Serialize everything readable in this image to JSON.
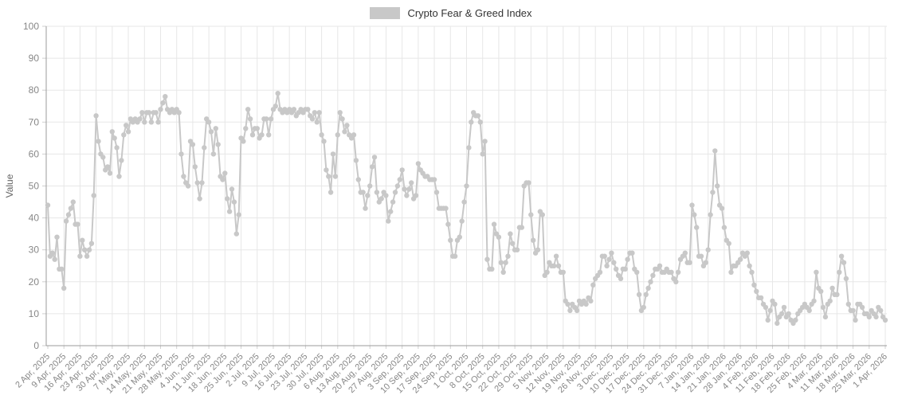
{
  "legend": {
    "label": "Crypto Fear & Greed Index",
    "swatch_color": "#c8c8c8"
  },
  "chart_data": {
    "type": "line",
    "title": "Crypto Fear & Greed Index",
    "xlabel": "",
    "ylabel": "Value",
    "ylim": [
      0,
      100
    ],
    "grid": true,
    "legend_position": "top-center",
    "series_color": "#c8c8c8",
    "grid_color": "#e7e7e7",
    "axis_color": "#9b9b9b",
    "tick_label_color": "#878787",
    "y_ticks": [
      0,
      10,
      20,
      30,
      40,
      50,
      60,
      70,
      80,
      90,
      100
    ],
    "x_tick_labels": [
      "2 Apr, 2025",
      "9 Apr, 2025",
      "16 Apr, 2025",
      "23 Apr, 2025",
      "30 Apr, 2025",
      "7 May, 2025",
      "14 May, 2025",
      "21 May, 2025",
      "28 May, 2025",
      "4 Jun, 2025",
      "11 Jun, 2025",
      "18 Jun, 2025",
      "25 Jun, 2025",
      "2 Jul, 2025",
      "9 Jul, 2025",
      "16 Jul, 2025",
      "23 Jul, 2025",
      "30 Jul, 2025",
      "6 Aug, 2025",
      "13 Aug, 2025",
      "20 Aug, 2025",
      "27 Aug, 2025",
      "3 Sep, 2025",
      "10 Sep, 2025",
      "17 Sep, 2025",
      "24 Sep, 2025",
      "1 Oct, 2025",
      "8 Oct, 2025",
      "15 Oct, 2025",
      "22 Oct, 2025",
      "29 Oct, 2025",
      "5 Nov, 2025",
      "12 Nov, 2025",
      "19 Nov, 2025",
      "26 Nov, 2025",
      "3 Dec, 2025",
      "10 Dec, 2025",
      "17 Dec, 2025",
      "24 Dec, 2025",
      "31 Dec, 2025",
      "7 Jan, 2026",
      "14 Jan, 2026",
      "21 Jan, 2026",
      "28 Jan, 2026",
      "4 Feb, 2026",
      "11 Feb, 2026",
      "18 Feb, 2026",
      "25 Feb, 2026",
      "4 Mar, 2026",
      "11 Mar, 2026",
      "18 Mar, 2026",
      "25 Mar, 2026",
      "1 Apr, 2026"
    ],
    "series": [
      {
        "name": "Crypto Fear & Greed Index",
        "frequency": "daily",
        "start_date": "2 Apr, 2025",
        "end_date": "1 Apr, 2026",
        "values": [
          44,
          28,
          29,
          27,
          34,
          24,
          24,
          18,
          39,
          41,
          43,
          45,
          38,
          38,
          28,
          33,
          30,
          28,
          30,
          32,
          47,
          72,
          64,
          60,
          59,
          55,
          56,
          54,
          67,
          65,
          62,
          53,
          58,
          66,
          69,
          67,
          71,
          70,
          71,
          70,
          71,
          73,
          70,
          73,
          73,
          70,
          73,
          73,
          70,
          74,
          76,
          78,
          74,
          73,
          74,
          73,
          74,
          73,
          60,
          53,
          51,
          50,
          64,
          63,
          56,
          51,
          46,
          51,
          62,
          71,
          70,
          67,
          60,
          68,
          63,
          53,
          52,
          54,
          46,
          42,
          49,
          45,
          35,
          41,
          65,
          64,
          68,
          74,
          71,
          66,
          68,
          68,
          65,
          66,
          71,
          71,
          66,
          71,
          74,
          75,
          79,
          74,
          73,
          74,
          73,
          74,
          73,
          74,
          72,
          73,
          74,
          73,
          74,
          74,
          72,
          71,
          73,
          70,
          73,
          66,
          64,
          55,
          53,
          48,
          60,
          53,
          66,
          73,
          71,
          67,
          69,
          66,
          65,
          66,
          58,
          52,
          48,
          48,
          43,
          47,
          50,
          56,
          59,
          48,
          45,
          46,
          48,
          47,
          39,
          42,
          45,
          48,
          50,
          52,
          55,
          49,
          47,
          49,
          51,
          46,
          47,
          57,
          55,
          54,
          53,
          53,
          52,
          52,
          52,
          48,
          43,
          43,
          43,
          43,
          38,
          33,
          28,
          28,
          33,
          34,
          39,
          45,
          50,
          62,
          70,
          73,
          72,
          72,
          70,
          60,
          64,
          27,
          24,
          24,
          38,
          35,
          34,
          26,
          23,
          26,
          28,
          35,
          32,
          30,
          30,
          37,
          37,
          50,
          51,
          51,
          41,
          33,
          29,
          30,
          42,
          41,
          22,
          23,
          26,
          25,
          25,
          28,
          25,
          23,
          23,
          14,
          13,
          11,
          13,
          12,
          11,
          14,
          13,
          14,
          13,
          15,
          14,
          19,
          21,
          22,
          23,
          28,
          28,
          25,
          27,
          29,
          26,
          24,
          22,
          21,
          24,
          24,
          27,
          29,
          29,
          24,
          23,
          16,
          11,
          12,
          16,
          18,
          20,
          22,
          24,
          24,
          25,
          23,
          23,
          24,
          23,
          23,
          21,
          20,
          23,
          27,
          28,
          29,
          26,
          26,
          44,
          41,
          37,
          28,
          28,
          25,
          26,
          30,
          41,
          48,
          61,
          50,
          44,
          43,
          37,
          33,
          32,
          23,
          25,
          25,
          26,
          27,
          29,
          28,
          29,
          25,
          23,
          19,
          17,
          15,
          15,
          13,
          12,
          8,
          11,
          14,
          13,
          7,
          9,
          10,
          12,
          9,
          10,
          8,
          7,
          8,
          10,
          11,
          12,
          13,
          12,
          11,
          13,
          14,
          23,
          18,
          17,
          12,
          9,
          13,
          14,
          18,
          16,
          16,
          23,
          28,
          26,
          21,
          13,
          11,
          11,
          8,
          13,
          13,
          12,
          10,
          10,
          9,
          11,
          10,
          9,
          12,
          11,
          9,
          8
        ]
      }
    ]
  }
}
